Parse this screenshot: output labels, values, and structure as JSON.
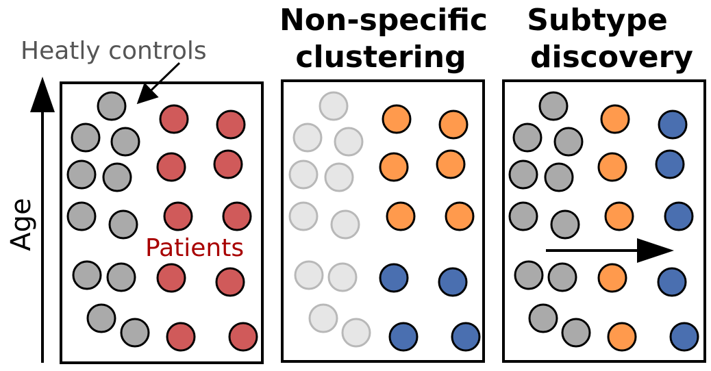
{
  "axis": {
    "label": "Age"
  },
  "annotations": {
    "healthy_controls": "Heatly controls",
    "patients": "Patients"
  },
  "panels": [
    {
      "id": "data",
      "title_lines": []
    },
    {
      "id": "non-specific",
      "title_lines": [
        "Non-specific",
        "clustering"
      ]
    },
    {
      "id": "subtype",
      "title_lines": [
        "Subtype",
        "discovery"
      ]
    }
  ],
  "colors": {
    "control": "#aaaaaa",
    "control_faded": "#e6e6e6",
    "faded_stroke": "#b8b8b8",
    "patient": "#d05a5a",
    "cluster_orange": "#ff9a4d",
    "cluster_blue": "#4a6fb0",
    "patients_text": "#a80000",
    "controls_text": "#555555",
    "border": "#000000"
  },
  "icons": {
    "age_arrow": "up-arrow-icon",
    "callout_arrow": "pointer-arrow-icon",
    "progression_arrow": "right-arrow-icon"
  }
}
